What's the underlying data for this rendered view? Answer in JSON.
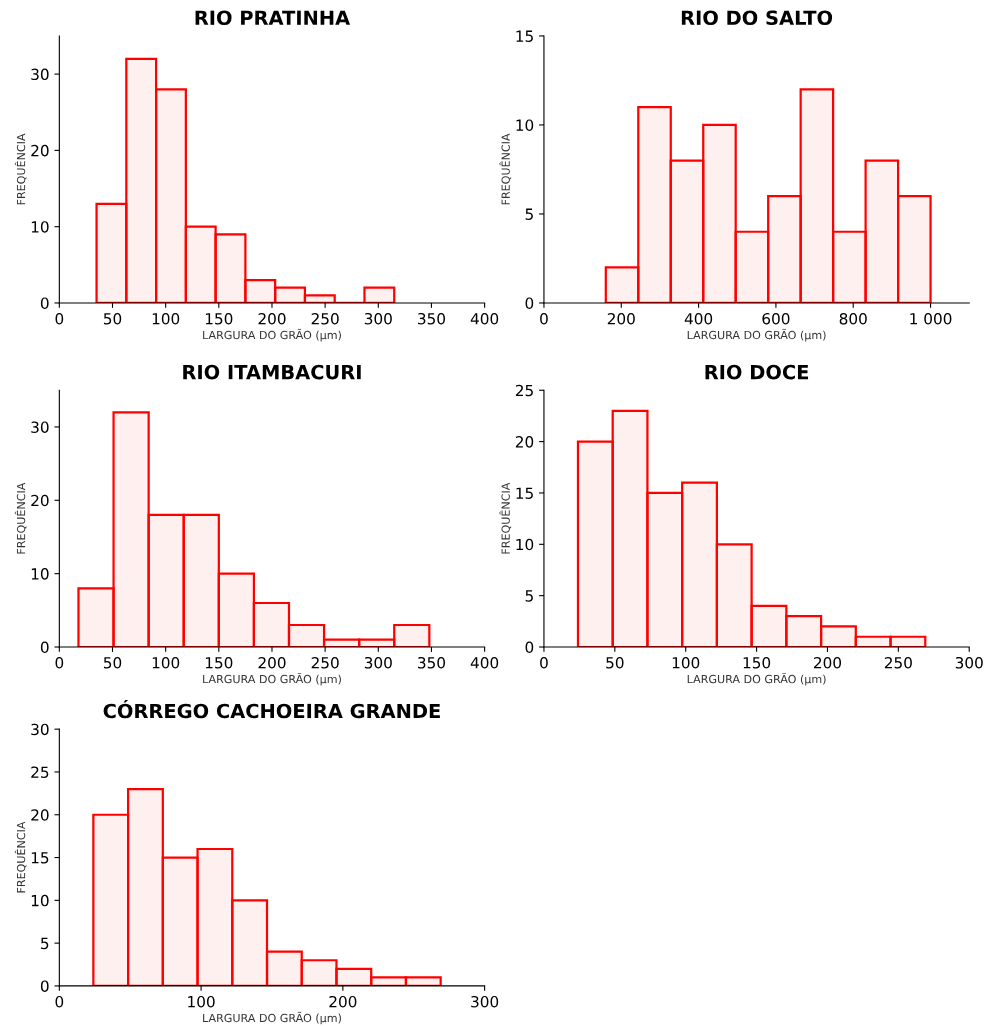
{
  "chart_data": [
    {
      "type": "histogram",
      "title": "RIO PRATINHA",
      "xlabel": "LARGURA DO GRÃO (µm)",
      "ylabel": "FREQUÊNCIA",
      "color": "#ff0000",
      "bins": [
        35,
        63,
        91,
        119,
        147,
        175,
        203,
        231,
        259,
        287,
        315
      ],
      "values": [
        13,
        32,
        28,
        10,
        9,
        3,
        2,
        1,
        0,
        2
      ],
      "xlim": [
        0,
        400
      ],
      "xticks": [
        0,
        50,
        100,
        150,
        200,
        250,
        300,
        350,
        400
      ],
      "ylim": [
        0,
        35
      ],
      "yticks": [
        0,
        10,
        20,
        30
      ],
      "grid": false
    },
    {
      "type": "histogram",
      "title": "RIO DO SALTO",
      "xlabel": "LARGURA DO GRÃO (µm)",
      "ylabel": "FREQUÊNCIA",
      "color": "#ff0000",
      "bins": [
        160,
        244,
        328,
        412,
        496,
        580,
        664,
        748,
        832,
        916,
        1000
      ],
      "values": [
        2,
        11,
        8,
        10,
        4,
        6,
        12,
        4,
        8,
        6
      ],
      "xlim": [
        0,
        1100
      ],
      "xticks": [
        0,
        200,
        400,
        600,
        800,
        {
          "value": 1000,
          "label": "1 000"
        }
      ],
      "ylim": [
        0,
        15
      ],
      "yticks": [
        0,
        5,
        10,
        15
      ],
      "grid": false
    },
    {
      "type": "histogram",
      "title": "RIO ITAMBACURI",
      "xlabel": "LARGURA DO GRÃO (µm)",
      "ylabel": "FREQUÊNCIA",
      "color": "#ff0000",
      "bins": [
        18,
        51,
        84,
        117,
        150,
        183,
        216,
        249,
        282,
        315,
        348
      ],
      "values": [
        8,
        32,
        18,
        18,
        10,
        6,
        3,
        1,
        1,
        3
      ],
      "xlim": [
        0,
        400
      ],
      "xticks": [
        0,
        50,
        100,
        150,
        200,
        250,
        300,
        350,
        400
      ],
      "ylim": [
        0,
        35
      ],
      "yticks": [
        0,
        10,
        20,
        30
      ],
      "grid": false
    },
    {
      "type": "histogram",
      "title": "RIO DOCE",
      "xlabel": "LARGURA DO GRÃO (µm)",
      "ylabel": "FREQUÊNCIA",
      "color": "#ff0000",
      "bins": [
        24,
        48.5,
        73,
        97.5,
        122,
        146.5,
        171,
        195.5,
        220,
        244.5,
        269
      ],
      "values": [
        20,
        23,
        15,
        16,
        10,
        4,
        3,
        2,
        1,
        1
      ],
      "xlim": [
        0,
        300
      ],
      "xticks": [
        0,
        50,
        100,
        150,
        200,
        250,
        300
      ],
      "ylim": [
        0,
        25
      ],
      "yticks": [
        0,
        5,
        10,
        15,
        20,
        25
      ],
      "grid": false
    },
    {
      "type": "histogram",
      "title": "CÓRREGO CACHOEIRA GRANDE",
      "xlabel": "LARGURA DO GRÃO (µm)",
      "ylabel": "FREQUÊNCIA",
      "color": "#ff0000",
      "bins": [
        24,
        48.5,
        73,
        97.5,
        122,
        146.5,
        171,
        195.5,
        220,
        244.5,
        269
      ],
      "values": [
        20,
        23,
        15,
        16,
        10,
        4,
        3,
        2,
        1,
        1
      ],
      "xlim": [
        0,
        300
      ],
      "xticks": [
        0,
        100,
        200,
        300
      ],
      "ylim": [
        0,
        30
      ],
      "yticks": [
        0,
        5,
        10,
        15,
        20,
        25,
        30
      ],
      "grid": false
    }
  ]
}
